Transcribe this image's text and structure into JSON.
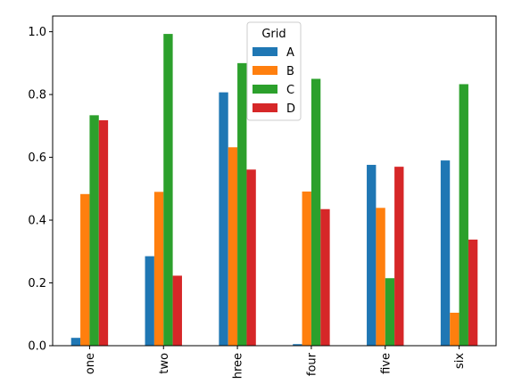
{
  "chart_data": {
    "type": "bar",
    "categories": [
      "one",
      "two",
      "hree",
      "four",
      "five",
      "six"
    ],
    "series": [
      {
        "name": "A",
        "color": "#1f77b4",
        "values": [
          0.025,
          0.285,
          0.807,
          0.005,
          0.576,
          0.59
        ]
      },
      {
        "name": "B",
        "color": "#ff7f0e",
        "values": [
          0.483,
          0.49,
          0.632,
          0.491,
          0.439,
          0.105
        ]
      },
      {
        "name": "C",
        "color": "#2ca02c",
        "values": [
          0.734,
          0.993,
          0.9,
          0.85,
          0.215,
          0.833
        ]
      },
      {
        "name": "D",
        "color": "#d62728",
        "values": [
          0.718,
          0.223,
          0.561,
          0.435,
          0.57,
          0.338
        ]
      }
    ],
    "title": "",
    "xlabel": "",
    "ylabel": "",
    "ylim": [
      0,
      1.05
    ],
    "yticks": [
      "0.0",
      "0.2",
      "0.4",
      "0.6",
      "0.8",
      "1.0"
    ],
    "legend": {
      "title": "Grid",
      "placement": "top-center"
    },
    "grid": false
  }
}
